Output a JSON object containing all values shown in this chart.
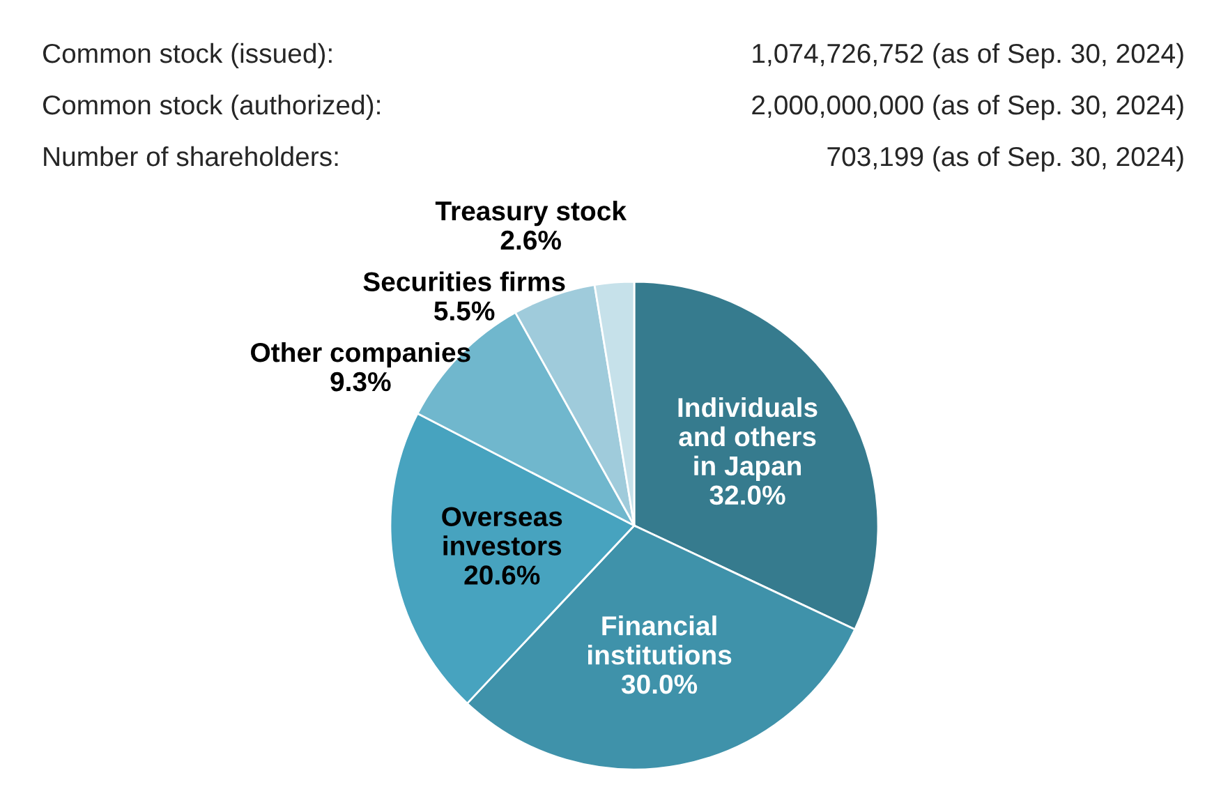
{
  "chart_data": {
    "type": "pie",
    "categories": [
      "Individuals\nand others\nin Japan",
      "Financial\ninstitutions",
      "Overseas\ninvestors",
      "Other companies",
      "Securities firms",
      "Treasury stock"
    ],
    "values": [
      32.0,
      30.0,
      20.6,
      9.3,
      5.5,
      2.6
    ],
    "value_labels": [
      "32.0%",
      "30.0%",
      "20.6%",
      "9.3%",
      "5.5%",
      "2.6%"
    ],
    "colors": [
      "#367b8e",
      "#3f92aa",
      "#47a3bf",
      "#70b7cd",
      "#9fcbdb",
      "#c6e1ea"
    ],
    "annotations": [
      "Common stock (issued):",
      "1,074,726,752 (as of Sep. 30, 2024)",
      "Common stock (authorized):",
      "2,000,000,000 (as of Sep. 30, 2024)",
      "Number of shareholders:",
      "703,199 (as of Sep. 30, 2024)"
    ],
    "legend": false
  }
}
